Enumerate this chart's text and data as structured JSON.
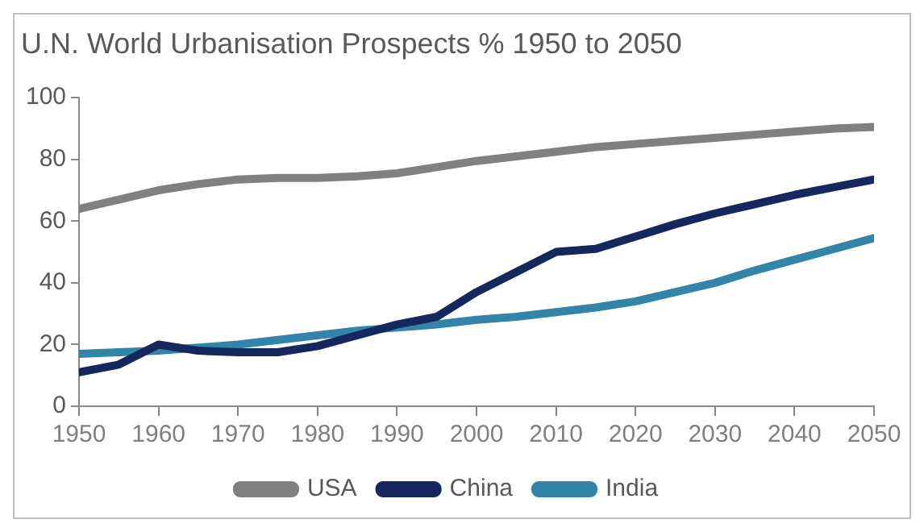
{
  "chart_data": {
    "type": "line",
    "title": "U.N. World Urbanisation Prospects % 1950 to 2050",
    "x": [
      1950,
      1955,
      1960,
      1965,
      1970,
      1975,
      1980,
      1985,
      1990,
      1995,
      2000,
      2005,
      2010,
      2015,
      2020,
      2025,
      2030,
      2035,
      2040,
      2045,
      2050
    ],
    "series": [
      {
        "name": "USA",
        "color": "#808080",
        "values": [
          64,
          67,
          70,
          72,
          73.5,
          74,
          74,
          74.5,
          75.5,
          77.5,
          79.5,
          81,
          82.5,
          84,
          85,
          86,
          87,
          88,
          89,
          90,
          90.5
        ]
      },
      {
        "name": "China",
        "color": "#14285e",
        "values": [
          11,
          13.5,
          20,
          18,
          17.5,
          17.5,
          19.5,
          23,
          26.5,
          29,
          37,
          43.5,
          50,
          51,
          55,
          59,
          62.5,
          65.5,
          68.5,
          71,
          73.5
        ]
      },
      {
        "name": "India",
        "color": "#3483a8",
        "values": [
          17,
          17.5,
          18,
          19,
          20,
          21.5,
          23,
          24.5,
          25.5,
          26.5,
          28,
          29,
          30.5,
          32,
          34,
          37,
          40,
          44,
          47.5,
          51,
          54.5
        ]
      }
    ],
    "xlim": [
      1950,
      2050
    ],
    "xticks": [
      1950,
      1960,
      1970,
      1980,
      1990,
      2000,
      2010,
      2020,
      2030,
      2040,
      2050
    ],
    "ylim": [
      0,
      100
    ],
    "yticks": [
      0,
      20,
      40,
      60,
      80,
      100
    ],
    "grid": false,
    "legend": "bottom",
    "marker": "none",
    "line_style": "solid"
  }
}
